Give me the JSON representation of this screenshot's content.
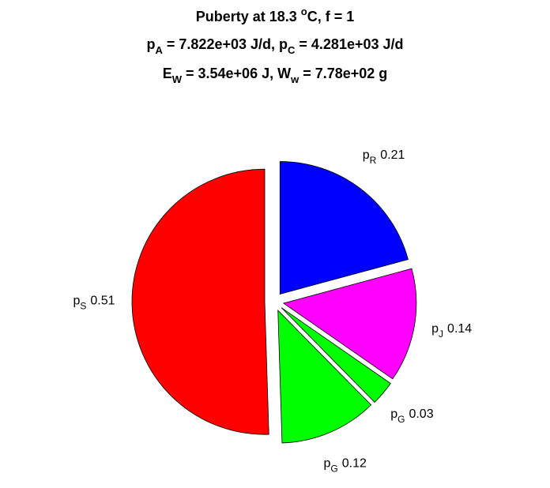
{
  "chart_data": {
    "type": "pie",
    "title": [
      [
        {
          "text": "Puberty at 18.3 "
        },
        {
          "text": "o",
          "shift": "super"
        },
        {
          "text": "C, f = 1"
        }
      ],
      [
        {
          "text": "p"
        },
        {
          "text": "A",
          "shift": "sub"
        },
        {
          "text": " = 7.822e+03 J/d,  p"
        },
        {
          "text": "C",
          "shift": "sub"
        },
        {
          "text": " = 4.281e+03 J/d"
        }
      ],
      [
        {
          "text": "E"
        },
        {
          "text": "W",
          "shift": "sub"
        },
        {
          "text": " = 3.54e+06 J, W"
        },
        {
          "text": "w",
          "shift": "sub"
        },
        {
          "text": " = 7.78e+02 g"
        }
      ]
    ],
    "labels": [
      {
        "symbol": "p",
        "subscript": "R"
      },
      {
        "symbol": "p",
        "subscript": "J"
      },
      {
        "symbol": "p",
        "subscript": "G"
      },
      {
        "symbol": "p",
        "subscript": "G"
      },
      {
        "symbol": "p",
        "subscript": "S"
      }
    ],
    "values": [
      0.21,
      0.14,
      0.03,
      0.12,
      0.51
    ],
    "colors": [
      "#0000ff",
      "#ff00ff",
      "#00ff00",
      "#00ff00",
      "#ff0000"
    ],
    "exploded": true
  }
}
